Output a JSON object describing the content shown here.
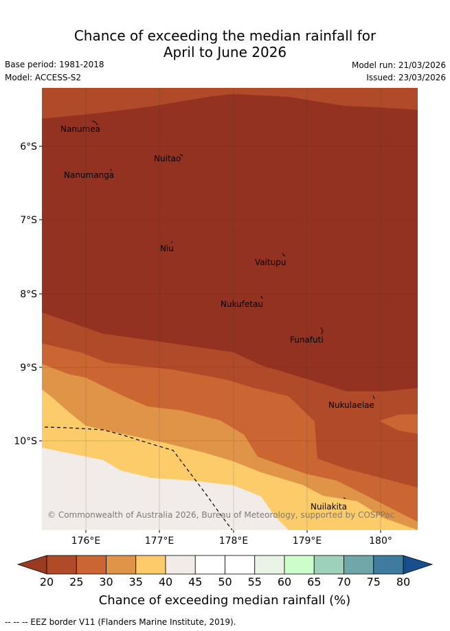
{
  "title_line1": "Chance of exceeding the median rainfall for",
  "title_line2": "April to June 2026",
  "base_period": "Base period: 1981-2018",
  "model": "Model: ACCESS-S2",
  "model_run": "Model run: 21/03/2026",
  "issued": "Issued: 23/03/2026",
  "places": [
    "Nanumea",
    "Nuitao",
    "Nanumanga",
    "Niu",
    "Vaitupu",
    "Nukufetau",
    "Funafuti",
    "Nukulaelae",
    "Nuilakita"
  ],
  "lat_labels": [
    "6°S",
    "7°S",
    "8°S",
    "9°S",
    "10°S"
  ],
  "lon_labels": [
    "176°E",
    "177°E",
    "178°E",
    "179°E",
    "180°"
  ],
  "copyright": "© Commonwealth of Australia 2026, Bureau of Meteorology, supported by COSPPac",
  "colorbar": {
    "ticks": [
      "20",
      "25",
      "30",
      "35",
      "40",
      "45",
      "50",
      "55",
      "60",
      "65",
      "70",
      "75",
      "80"
    ],
    "colors": [
      "#b04a28",
      "#cb6531",
      "#e09448",
      "#fdcc6a",
      "#f1ece7",
      "#ffffff",
      "#ffffff",
      "#e9f4e6",
      "#ccfdcb",
      "#9dd1bb",
      "#71a6a9",
      "#3f7b9c"
    ],
    "low_color": "#9b3a23",
    "high_color": "#174f8c",
    "label": "Chance of exceeding median rainfall (%)"
  },
  "map_colors": {
    "below20": "#943222",
    "20to25": "#b04a28",
    "25to30": "#cb6531",
    "30to35": "#e09448",
    "35to40": "#fdcc6a",
    "40to45": "#f1ece7"
  },
  "footer": "-- -- -- EEZ border V11 (Flanders Marine Institute, 2019)."
}
